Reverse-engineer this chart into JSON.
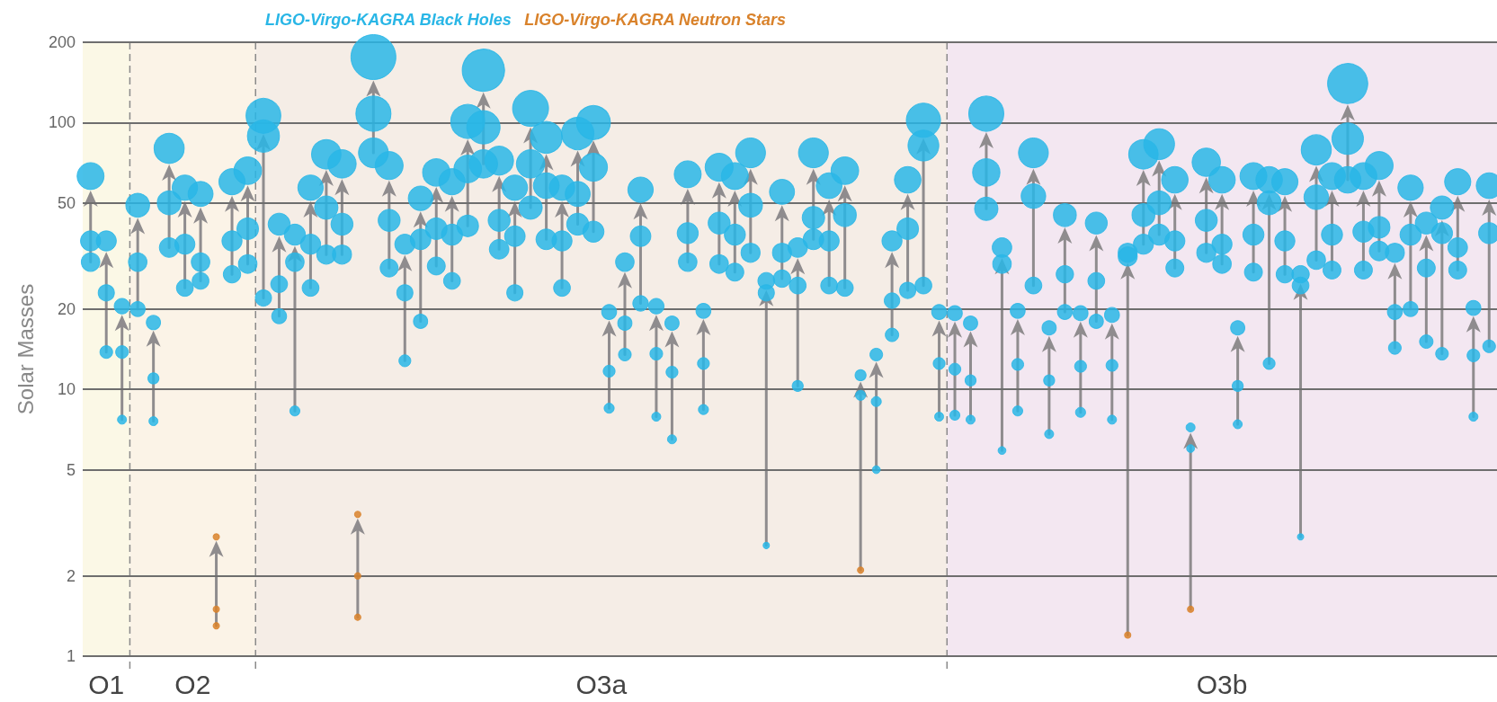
{
  "chart_data": {
    "type": "bubble",
    "ylabel": "Solar Masses",
    "log": "y",
    "grid": "y",
    "tick_labels": "y",
    "marker": "circle",
    "ylim": [
      1,
      200
    ],
    "yticks": [
      1,
      2,
      5,
      10,
      20,
      50,
      100,
      200
    ],
    "annotations": [
      "O1",
      "O2",
      "O3a",
      "O3b"
    ],
    "categories": [
      null,
      null,
      null,
      null,
      null,
      null,
      null,
      null,
      null,
      null,
      null,
      null,
      null,
      null,
      null,
      null,
      null,
      null,
      null,
      null,
      null,
      null,
      null,
      null,
      null,
      null,
      null,
      null,
      null,
      null,
      null,
      null,
      null,
      null,
      null,
      null,
      null,
      null,
      null,
      null,
      null,
      null,
      null,
      null,
      null,
      null,
      null,
      null,
      null,
      null,
      null,
      null,
      null,
      null,
      null,
      null,
      null,
      null,
      null,
      null,
      null,
      null,
      null,
      null,
      null,
      null,
      null,
      null,
      null,
      null,
      null,
      null,
      null,
      null,
      null,
      null,
      null,
      null,
      null,
      null,
      null,
      null,
      null,
      null,
      null,
      null,
      null,
      null,
      null,
      null
    ],
    "series": [
      {
        "name": "LIGO-Virgo-KAGRA Black Holes",
        "color": "#29b6e6",
        "values": [
          63,
          36,
          20.5,
          49,
          17.8,
          80,
          57,
          54,
          null,
          60,
          66,
          106,
          41.6,
          38,
          57,
          76,
          70,
          null,
          176,
          69,
          35,
          52,
          65,
          60,
          101,
          157,
          72,
          57,
          113,
          88,
          57,
          91,
          100,
          19.5,
          30,
          56,
          20.5,
          17.7,
          64,
          19.7,
          68,
          63,
          77,
          25.5,
          55,
          34,
          77,
          58,
          66,
          11.3,
          13.5,
          36,
          61,
          102,
          19.5,
          19.3,
          17.7,
          108,
          34,
          19.7,
          77,
          17,
          45,
          19.3,
          42,
          19,
          32.5,
          76,
          83,
          61,
          7.2,
          71,
          61,
          17,
          63,
          61,
          60,
          27,
          79,
          63,
          140,
          63,
          69,
          32.5,
          57,
          42,
          48,
          60,
          20.2,
          58
        ],
        "sizes": [
          0.36,
          0.2,
          0.12,
          0.28,
          0.1,
          0.45,
          0.32,
          0.31,
          null,
          0.34,
          0.38,
          0.6,
          0.24,
          0.22,
          0.32,
          0.43,
          0.4,
          null,
          1,
          0.39,
          0.2,
          0.3,
          0.37,
          0.34,
          0.57,
          0.89,
          0.41,
          0.32,
          0.64,
          0.5,
          0.32,
          0.52,
          0.57,
          0.11,
          0.17,
          0.32,
          0.12,
          0.1,
          0.36,
          0.11,
          0.39,
          0.36,
          0.44,
          0.14,
          0.31,
          0.19,
          0.44,
          0.33,
          0.38,
          0.06,
          0.08,
          0.2,
          0.35,
          0.58,
          0.11,
          0.11,
          0.1,
          0.61,
          0.19,
          0.11,
          0.44,
          0.1,
          0.26,
          0.11,
          0.24,
          0.11,
          0.18,
          0.43,
          0.47,
          0.35,
          0.04,
          0.4,
          0.35,
          0.1,
          0.36,
          0.35,
          0.34,
          0.15,
          0.45,
          0.36,
          0.8,
          0.36,
          0.39,
          0.18,
          0.32,
          0.24,
          0.27,
          0.34,
          0.11,
          0.33
        ]
      },
      {
        "color": "#29b6e6",
        "values": [
          36,
          23,
          13.8,
          30,
          11,
          50,
          35,
          30,
          null,
          36,
          40,
          89,
          24.8,
          30,
          35,
          48,
          41.6,
          null,
          108,
          43,
          23,
          36.5,
          40,
          38,
          67,
          96,
          43,
          37.5,
          70,
          58,
          36,
          54,
          68,
          11.7,
          17.7,
          37.5,
          13.6,
          11.6,
          38.5,
          12.5,
          42,
          38,
          49,
          23,
          32.5,
          24.5,
          44,
          36,
          45,
          9.5,
          9,
          21.5,
          40,
          82,
          12.5,
          11.9,
          10.8,
          65,
          29.5,
          12.4,
          53,
          10.8,
          27,
          12.2,
          25.5,
          12.3,
          31.5,
          45,
          50,
          36,
          6,
          43,
          35,
          10.3,
          38,
          50,
          36,
          24.5,
          52.5,
          38,
          87,
          39,
          40.5,
          19.5,
          38,
          28.5,
          38.5,
          34,
          13.4,
          38.5
        ],
        "sizes": [
          0.2,
          0.13,
          0.08,
          0.17,
          0.06,
          0.28,
          0.2,
          0.17,
          null,
          0.2,
          0.23,
          0.51,
          0.14,
          0.17,
          0.2,
          0.27,
          0.24,
          null,
          0.61,
          0.24,
          0.13,
          0.21,
          0.23,
          0.22,
          0.38,
          0.55,
          0.24,
          0.21,
          0.4,
          0.33,
          0.2,
          0.31,
          0.39,
          0.07,
          0.1,
          0.21,
          0.08,
          0.07,
          0.22,
          0.07,
          0.24,
          0.22,
          0.28,
          0.13,
          0.18,
          0.14,
          0.25,
          0.2,
          0.26,
          0.05,
          0.05,
          0.12,
          0.23,
          0.47,
          0.07,
          0.07,
          0.06,
          0.37,
          0.17,
          0.07,
          0.3,
          0.06,
          0.15,
          0.07,
          0.14,
          0.07,
          0.18,
          0.26,
          0.28,
          0.2,
          0.03,
          0.24,
          0.2,
          0.06,
          0.22,
          0.28,
          0.2,
          0.14,
          0.3,
          0.22,
          0.49,
          0.22,
          0.23,
          0.11,
          0.22,
          0.16,
          0.22,
          0.19,
          0.08,
          0.22
        ]
      },
      {
        "color": "#29b6e6",
        "values": [
          30,
          13.8,
          7.7,
          20,
          7.6,
          34,
          24,
          25.5,
          null,
          27,
          29.5,
          22,
          18.8,
          8.3,
          24,
          32,
          32,
          null,
          77,
          28.5,
          12.8,
          18,
          29,
          25.5,
          41,
          70,
          33.5,
          23,
          48,
          36.5,
          24,
          41.6,
          39,
          8.5,
          13.5,
          21,
          7.9,
          6.5,
          30,
          8.4,
          29.5,
          27.5,
          32.5,
          2.6,
          26,
          10.3,
          36.5,
          24.5,
          24,
          null,
          5,
          16,
          23.5,
          24.5,
          7.9,
          8,
          7.7,
          47.5,
          5.9,
          8.3,
          24.5,
          6.8,
          19.5,
          8.2,
          18,
          7.7,
          null,
          35,
          38,
          28.5,
          null,
          32.5,
          29.5,
          7.4,
          27.5,
          12.5,
          27,
          2.8,
          30.5,
          28,
          61,
          28,
          33,
          14.3,
          20,
          15.1,
          13.6,
          28,
          7.9,
          14.5
        ],
        "sizes": [
          0.17,
          0.08,
          0.04,
          0.11,
          0.04,
          0.19,
          0.14,
          0.14,
          null,
          0.15,
          0.17,
          0.13,
          0.11,
          0.05,
          0.14,
          0.18,
          0.18,
          null,
          0.44,
          0.16,
          0.07,
          0.1,
          0.16,
          0.14,
          0.23,
          0.4,
          0.19,
          0.13,
          0.27,
          0.21,
          0.14,
          0.24,
          0.22,
          0.05,
          0.08,
          0.12,
          0.04,
          0.04,
          0.17,
          0.05,
          0.17,
          0.16,
          0.18,
          0.02,
          0.15,
          0.06,
          0.21,
          0.14,
          0.14,
          null,
          0.03,
          0.09,
          0.13,
          0.14,
          0.04,
          0.05,
          0.04,
          0.27,
          0.03,
          0.05,
          0.14,
          0.04,
          0.11,
          0.05,
          0.1,
          0.04,
          null,
          0.2,
          0.22,
          0.16,
          null,
          0.18,
          0.17,
          0.04,
          0.16,
          0.07,
          0.15,
          0.02,
          0.17,
          0.16,
          0.35,
          0.16,
          0.19,
          0.08,
          0.11,
          0.09,
          0.08,
          0.16,
          0.04,
          0.08
        ]
      },
      {
        "name": "LIGO-Virgo-KAGRA Neutron Stars",
        "color": "#d9822b",
        "values": [
          null,
          null,
          null,
          null,
          null,
          null,
          null,
          null,
          2.8,
          null,
          null,
          null,
          null,
          null,
          null,
          null,
          null,
          3.4,
          null,
          null,
          null,
          null,
          null,
          null,
          null,
          null,
          null,
          null,
          null,
          null,
          null,
          null,
          null,
          null,
          null,
          null,
          null,
          null,
          null,
          null,
          null,
          null,
          null,
          null,
          null,
          null,
          null,
          null,
          null,
          null,
          null,
          null,
          null,
          null,
          null,
          null,
          null,
          null,
          null,
          null,
          null,
          null,
          null,
          null,
          null,
          null,
          null,
          null,
          null,
          null,
          null,
          null,
          null,
          null,
          null,
          null,
          null,
          null,
          null,
          null,
          null,
          null,
          null,
          null,
          null,
          null,
          null,
          null,
          null,
          null
        ],
        "sizes": [
          null,
          null,
          null,
          null,
          null,
          null,
          null,
          null,
          0.02,
          null,
          null,
          null,
          null,
          null,
          null,
          null,
          null,
          0.02,
          null,
          null,
          null,
          null,
          null,
          null,
          null,
          null,
          null,
          null,
          null,
          null,
          null,
          null,
          null,
          null,
          null,
          null,
          null,
          null,
          null,
          null,
          null,
          null,
          null,
          null,
          null,
          null,
          null,
          null,
          null,
          null,
          null,
          null,
          null,
          null,
          null,
          null,
          null,
          null,
          null,
          null,
          null,
          null,
          null,
          null,
          null,
          null,
          null,
          null,
          null,
          null,
          null,
          null,
          null,
          null,
          null,
          null,
          null,
          null,
          null,
          null,
          null,
          null,
          null,
          null,
          null,
          null,
          null,
          null,
          null,
          null
        ]
      },
      {
        "color": "#d9822b",
        "values": [
          null,
          null,
          null,
          null,
          null,
          null,
          null,
          null,
          1.5,
          null,
          null,
          null,
          null,
          null,
          null,
          null,
          null,
          2.0,
          null,
          null,
          null,
          null,
          null,
          null,
          null,
          null,
          null,
          null,
          null,
          null,
          null,
          null,
          null,
          null,
          null,
          null,
          null,
          null,
          null,
          null,
          null,
          null,
          null,
          null,
          null,
          null,
          null,
          null,
          null,
          2.1,
          null,
          null,
          null,
          null,
          null,
          null,
          null,
          null,
          null,
          null,
          null,
          null,
          null,
          null,
          null,
          null,
          1.2,
          null,
          null,
          null,
          1.5,
          null,
          null,
          null,
          null,
          null,
          null,
          null,
          null,
          null,
          null,
          null,
          null,
          null,
          null,
          null,
          null,
          null,
          null,
          null
        ],
        "sizes": [
          null,
          null,
          null,
          null,
          null,
          null,
          null,
          null,
          0.02,
          null,
          null,
          null,
          null,
          null,
          null,
          null,
          null,
          0.02,
          null,
          null,
          null,
          null,
          null,
          null,
          null,
          null,
          null,
          null,
          null,
          null,
          null,
          null,
          null,
          null,
          null,
          null,
          null,
          null,
          null,
          null,
          null,
          null,
          null,
          null,
          null,
          null,
          null,
          null,
          null,
          0.02,
          null,
          null,
          null,
          null,
          null,
          null,
          null,
          null,
          null,
          null,
          null,
          null,
          null,
          null,
          null,
          null,
          0.02,
          null,
          null,
          null,
          0.02,
          null,
          null,
          null,
          null,
          null,
          null,
          null,
          null,
          null,
          null,
          null,
          null,
          null,
          null,
          null,
          null,
          null,
          null,
          null
        ]
      },
      {
        "color": "#d9822b",
        "values": [
          null,
          null,
          null,
          null,
          null,
          null,
          null,
          null,
          1.3,
          null,
          null,
          null,
          null,
          null,
          null,
          null,
          null,
          1.4,
          null,
          null,
          null,
          null,
          null,
          null,
          null,
          null,
          null,
          null,
          null,
          null,
          null,
          null,
          null,
          null,
          null,
          null,
          null,
          null,
          null,
          null,
          null,
          null,
          null,
          null,
          null,
          null,
          null,
          null,
          null,
          null,
          null,
          null,
          null,
          null,
          null,
          null,
          null,
          null,
          null,
          null,
          null,
          null,
          null,
          null,
          null,
          null,
          null,
          null,
          null,
          null,
          null,
          null,
          null,
          null,
          null,
          null,
          null,
          null,
          null,
          null,
          null,
          null,
          null,
          null,
          null,
          null,
          null,
          null,
          null,
          null
        ],
        "sizes": [
          null,
          null,
          null,
          null,
          null,
          null,
          null,
          null,
          0.02,
          null,
          null,
          null,
          null,
          null,
          null,
          null,
          null,
          0.02,
          null,
          null,
          null,
          null,
          null,
          null,
          null,
          null,
          null,
          null,
          null,
          null,
          null,
          null,
          null,
          null,
          null,
          null,
          null,
          null,
          null,
          null,
          null,
          null,
          null,
          null,
          null,
          null,
          null,
          null,
          null,
          null,
          null,
          null,
          null,
          null,
          null,
          null,
          null,
          null,
          null,
          null,
          null,
          null,
          null,
          null,
          null,
          null,
          null,
          null,
          null,
          null,
          null,
          null,
          null,
          null,
          null,
          null,
          null,
          null,
          null,
          null,
          null,
          null,
          null,
          null,
          null,
          null,
          null,
          null,
          null,
          null
        ]
      }
    ]
  }
}
